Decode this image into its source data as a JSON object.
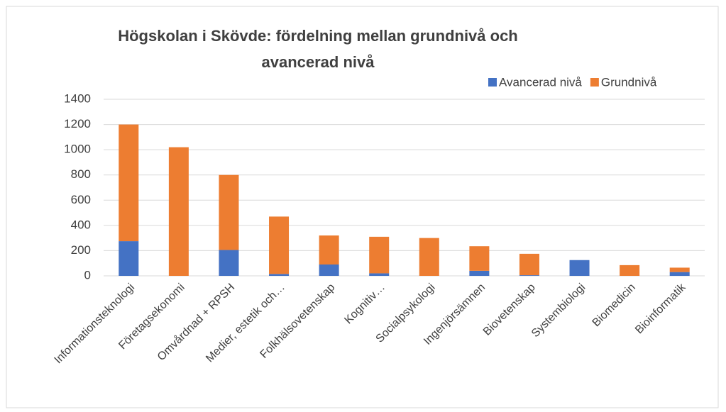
{
  "chart_data": {
    "type": "stacked_bar",
    "title": "Högskolan i Skövde: fördelning mellan grundnivå och avancerad nivå",
    "title_lines": [
      "Högskolan i Skövde: fördelning mellan grundnivå och",
      "avancerad nivå"
    ],
    "categories": [
      "Informationsteknologi",
      "Företagsekonomi",
      "Omvårdnad + RPSH",
      "Medier, estetik och…",
      "Folkhälsovetenskap",
      "Kognitiv…",
      "Socialpsykologi",
      "Ingenjörsämnen",
      "Biovetenskap",
      "Systembiologi",
      "Biomedicin",
      "Bioinformatik"
    ],
    "series": [
      {
        "name": "Avancerad nivå",
        "color": "#4472c4",
        "values": [
          275,
          0,
          205,
          15,
          90,
          20,
          0,
          40,
          5,
          125,
          0,
          30
        ]
      },
      {
        "name": "Grundnivå",
        "color": "#ed7d31",
        "values": [
          925,
          1020,
          595,
          455,
          230,
          290,
          300,
          195,
          170,
          0,
          85,
          35
        ]
      }
    ],
    "ylim": [
      0,
      1400
    ],
    "yticks": [
      0,
      200,
      400,
      600,
      800,
      1000,
      1200,
      1400
    ],
    "grid": true,
    "legend": "top-right"
  }
}
